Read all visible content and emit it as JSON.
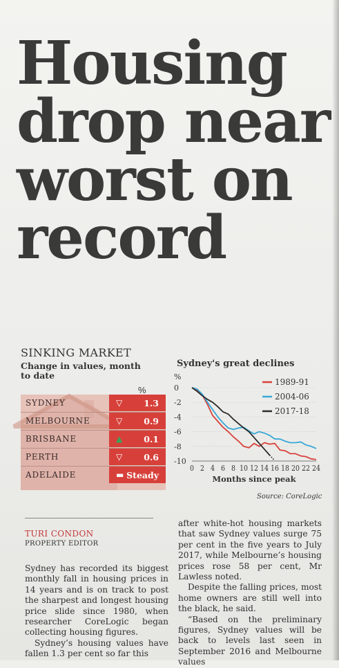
{
  "headline": [
    "Housing",
    "drop near",
    "worst on",
    "record"
  ],
  "widget": {
    "title": "SINKING MARKET",
    "subtitle": "Change in values, month to date",
    "pct_header": "%",
    "rows": [
      {
        "city": "SYDNEY",
        "direction": "down",
        "symbol": "▽",
        "value": "1.3"
      },
      {
        "city": "MELBOURNE",
        "direction": "down",
        "symbol": "▽",
        "value": "0.9"
      },
      {
        "city": "BRISBANE",
        "direction": "up",
        "symbol": "▲",
        "value": "0.1"
      },
      {
        "city": "PERTH",
        "direction": "down",
        "symbol": "▽",
        "value": "0.6"
      },
      {
        "city": "ADELAIDE",
        "direction": "flat",
        "symbol": "▬",
        "value": "Steady"
      }
    ],
    "colors": {
      "cell": "#d7403a",
      "up": "#3aa35a",
      "house": "#e7c2b8"
    }
  },
  "chart_data": {
    "type": "line",
    "title": "Sydney's great declines",
    "ylabel": "%",
    "xlabel": "Months since peak",
    "source": "Source: CoreLogic",
    "ylim": [
      -10,
      0
    ],
    "xlim": [
      0,
      24
    ],
    "yticks": [
      0,
      -2,
      -4,
      -6,
      -8,
      -10
    ],
    "xticks": [
      0,
      2,
      4,
      6,
      8,
      10,
      12,
      14,
      16,
      18,
      20,
      22,
      24
    ],
    "legend": "top-right",
    "series": [
      {
        "name": "1989-91",
        "color": "#d8413a",
        "x": [
          0,
          1,
          2,
          3,
          4,
          5,
          6,
          7,
          8,
          9,
          10,
          11,
          12,
          13,
          14,
          15,
          16,
          17,
          18,
          19,
          20,
          21,
          22,
          23,
          24
        ],
        "y": [
          0,
          -0.3,
          -1.0,
          -2.3,
          -3.8,
          -4.6,
          -5.4,
          -6.0,
          -6.7,
          -7.3,
          -8.0,
          -8.2,
          -7.6,
          -8.0,
          -7.5,
          -7.7,
          -7.6,
          -8.5,
          -8.6,
          -9.0,
          -9.0,
          -9.3,
          -9.4,
          -9.7,
          -9.8
        ]
      },
      {
        "name": "2004-06",
        "color": "#37a8d8",
        "x": [
          0,
          1,
          2,
          3,
          4,
          5,
          6,
          7,
          8,
          9,
          10,
          11,
          12,
          13,
          14,
          15,
          16,
          17,
          18,
          19,
          20,
          21,
          22,
          23,
          24
        ],
        "y": [
          0,
          -0.2,
          -0.9,
          -2.0,
          -3.0,
          -4.0,
          -4.8,
          -5.5,
          -5.7,
          -5.5,
          -5.4,
          -5.9,
          -6.3,
          -6.0,
          -6.2,
          -6.5,
          -7.0,
          -7.0,
          -7.3,
          -7.5,
          -7.5,
          -7.4,
          -7.8,
          -8.0,
          -8.3
        ]
      },
      {
        "name": "2017-18",
        "color": "#2a2a2a",
        "x": [
          0,
          1,
          2,
          3,
          4,
          5,
          6,
          7,
          8,
          9,
          10,
          11,
          12,
          13,
          14,
          15
        ],
        "y": [
          0,
          -0.5,
          -1.1,
          -1.6,
          -2.0,
          -2.6,
          -3.3,
          -3.6,
          -4.3,
          -4.9,
          -5.5,
          -6.0,
          -6.8,
          -7.6,
          -8.4,
          -9.2
        ]
      }
    ]
  },
  "byline": {
    "name": "TURI CONDON",
    "role": "PROPERTY EDITOR"
  },
  "column1": [
    "Sydney has recorded its biggest monthly fall in housing prices in 14 years and is on track to post the sharpest and longest housing price slide since 1980, when researcher CoreLogic began collecting housing figures.",
    "Sydney’s housing values have fallen 1.3 per cent so far this"
  ],
  "column2": [
    "after white-hot housing markets that saw Sydney values surge 75 per cent in the five years to July 2017, while Melbourne’s housing prices rose 58 per cent, Mr Lawless noted.",
    "Despite the falling prices, most home owners are still well into the black, he said.",
    "“Based on the preliminary figures, Sydney values will be back to levels last seen in September 2016 and Melbourne values"
  ]
}
